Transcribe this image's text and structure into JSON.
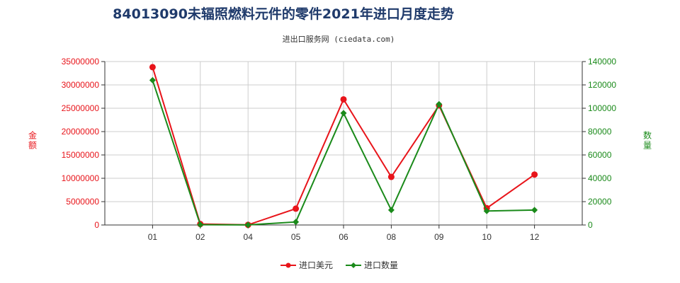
{
  "title": "84013090未辐照燃料元件的零件2021年进口月度走势",
  "subtitle": "进出口服务网 (ciedata.com)",
  "colors": {
    "title": "#1f3a6b",
    "left_axis": "#e8141a",
    "right_axis": "#1a8a1a",
    "grid": "#cccccc",
    "series_value": "#e8141a",
    "series_quantity": "#1a8a1a"
  },
  "chart_data": {
    "type": "line",
    "categories": [
      "01",
      "02",
      "04",
      "05",
      "06",
      "08",
      "09",
      "10",
      "12"
    ],
    "y_left": {
      "label": "金额",
      "ticks": [
        "35000000",
        "30000000",
        "25000000",
        "20000000",
        "15000000",
        "10000000",
        "5000000",
        "0"
      ],
      "ylim": [
        0,
        35000000
      ]
    },
    "y_right": {
      "label": "数量",
      "ticks": [
        "140000",
        "120000",
        "100000",
        "80000",
        "60000",
        "40000",
        "20000",
        "0"
      ],
      "ylim": [
        0,
        140000
      ]
    },
    "series": [
      {
        "name": "进口美元",
        "axis": "left",
        "marker": "circle",
        "values": [
          33800000,
          200000,
          30000,
          3500000,
          26900000,
          10300000,
          25600000,
          3600000,
          10800000
        ]
      },
      {
        "name": "进口数量",
        "axis": "right",
        "marker": "diamond",
        "values": [
          124000,
          200,
          50,
          2600,
          95800,
          12800,
          103500,
          12000,
          12800
        ]
      }
    ],
    "grid": true,
    "legend": "bottom-center"
  }
}
